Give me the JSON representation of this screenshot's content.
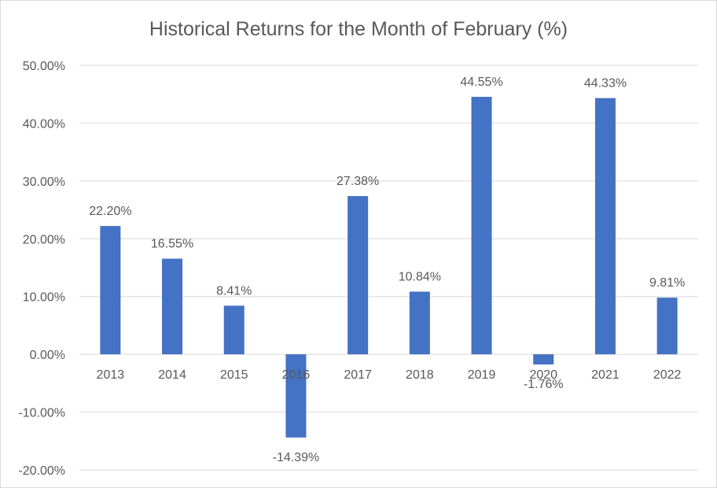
{
  "chart_data": {
    "type": "bar",
    "title": "Historical Returns for the Month of February (%)",
    "xlabel": "",
    "ylabel": "",
    "categories": [
      "2013",
      "2014",
      "2015",
      "2016",
      "2017",
      "2018",
      "2019",
      "2020",
      "2021",
      "2022"
    ],
    "values": [
      22.2,
      16.55,
      8.41,
      -14.39,
      27.38,
      10.84,
      44.55,
      -1.76,
      44.33,
      9.81
    ],
    "data_labels": [
      "22.20%",
      "16.55%",
      "8.41%",
      "-14.39%",
      "27.38%",
      "10.84%",
      "44.55%",
      "-1.76%",
      "44.33%",
      "9.81%"
    ],
    "ylim": [
      -20,
      50
    ],
    "yticks": [
      -20,
      -10,
      0,
      10,
      20,
      30,
      40,
      50
    ],
    "ytick_labels": [
      "-20.00%",
      "-10.00%",
      "0.00%",
      "10.00%",
      "20.00%",
      "30.00%",
      "40.00%",
      "50.00%"
    ],
    "grid": true,
    "legend": "none",
    "colors": {
      "bar": "#4472c4",
      "grid": "#d9d9d9",
      "text": "#595959",
      "title": "#595959"
    }
  }
}
